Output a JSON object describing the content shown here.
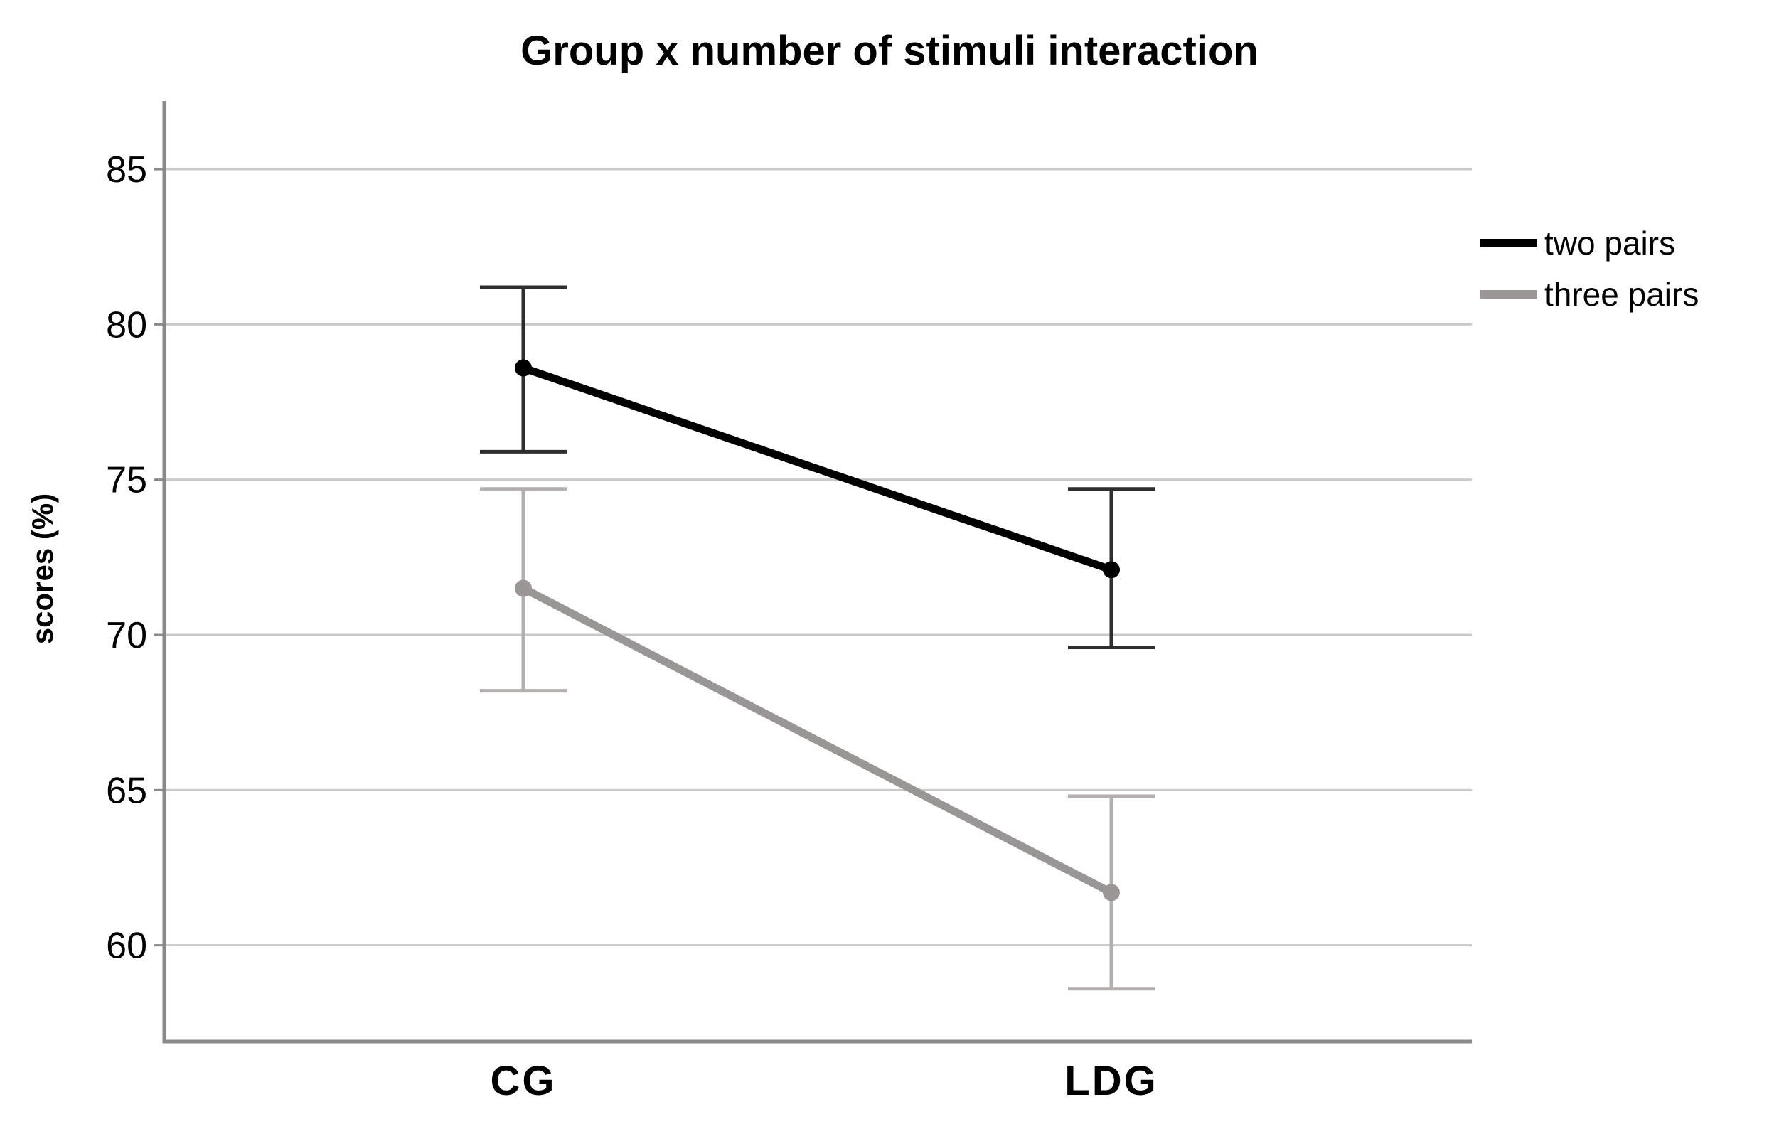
{
  "chart_data": {
    "type": "line",
    "title": "Group x number of stimuli interaction",
    "xlabel": "",
    "ylabel": "scores (%)",
    "categories": [
      "CG",
      "LDG"
    ],
    "yticks": [
      60,
      65,
      70,
      75,
      80,
      85
    ],
    "ylim": [
      56.9,
      87.2
    ],
    "grid": true,
    "legend_position": "right-top",
    "error_bars": true,
    "series": [
      {
        "name": "two pairs",
        "color": "#000000",
        "error_color": "#2e2e2e",
        "values": [
          78.6,
          72.1
        ],
        "ci_lower": [
          75.9,
          69.6
        ],
        "ci_upper": [
          81.2,
          74.7
        ]
      },
      {
        "name": "three pairs",
        "color": "#9a9696",
        "error_color": "#b3afaf",
        "values": [
          71.5,
          61.7
        ],
        "ci_lower": [
          68.2,
          58.6
        ],
        "ci_upper": [
          74.7,
          64.8
        ]
      }
    ],
    "colors": {
      "grid_line": "#c9c9c9",
      "axis_spine": "#8a8a8a",
      "tick_mark": "#8a8a8a",
      "tick_label": "#000000",
      "background": "#ffffff"
    }
  }
}
